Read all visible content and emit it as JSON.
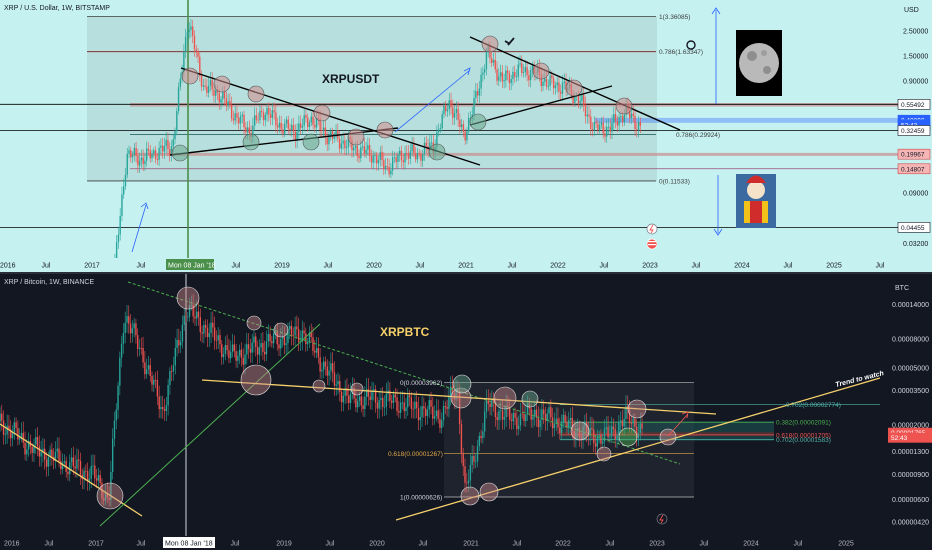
{
  "top": {
    "header": "XRP / U.S. Dollar, 1W, BITSTAMP",
    "axis_unit": "USD",
    "title": "XRPUSDT",
    "colors": {
      "background": "#c6f1f1",
      "up": "#26a69a",
      "down": "#ef5350",
      "trend": "#000000",
      "highlight": "#4a8f4a"
    },
    "date_highlight": "Mon 08 Jan '18",
    "fib_levels": [
      {
        "label": "1(3.36085)",
        "value": 3.36085
      },
      {
        "label": "0.786(1.63347)",
        "value": 1.63347
      },
      {
        "label": "0.786(0.29924)",
        "value": 0.29924
      },
      {
        "label": "0(0.11533)",
        "value": 0.11533
      }
    ],
    "price_tags": [
      {
        "label": "0.55492",
        "value": 0.55492,
        "style": "boxed"
      },
      {
        "label": "0.40090",
        "value": 0.4009,
        "style": "current"
      },
      {
        "label": "52:43",
        "value": 0.365,
        "style": "current"
      },
      {
        "label": "0.32459",
        "value": 0.32459,
        "style": "boxed"
      },
      {
        "label": "0.19967",
        "value": 0.19967,
        "style": "red"
      },
      {
        "label": "0.14807",
        "value": 0.14807,
        "style": "red"
      },
      {
        "label": "0.04455",
        "value": 0.04455,
        "style": "boxed"
      }
    ],
    "icons": {
      "moon": "moon-icon",
      "clown": "clown-icon",
      "flag": "us-flag-icon",
      "bolt": "lightning-icon",
      "eye": "eye-icon"
    }
  },
  "bottom": {
    "header": "XRP / Bitcoin, 1W, BINANCE",
    "axis_unit": "BTC",
    "title": "XRPBTC",
    "trend_label": "Trend to watch",
    "colors": {
      "background": "#131722",
      "up": "#26a69a",
      "down": "#ef5350",
      "trend_yellow": "#f6d06a",
      "trend_green": "#4caf50"
    },
    "date_highlight": "Mon 08 Jan '18",
    "fib_levels": [
      {
        "label": "0(0.00003962)",
        "value": 3.962e-05
      },
      {
        "label": "0.618(0.00001267)",
        "value": 1.267e-05
      },
      {
        "label": "1(0.00000626)",
        "value": 6.26e-06
      },
      {
        "label": "0.702(0.00002774)",
        "value": 2.774e-05
      },
      {
        "label": "0.382(0.00002091)",
        "value": 2.091e-05
      },
      {
        "label": "0.618(0.00001705)",
        "value": 1.705e-05
      },
      {
        "label": "0.702(0.00001583)",
        "value": 1.583e-05
      }
    ],
    "price_tags": [
      {
        "label": "0.00001765",
        "value": 1.765e-05,
        "style": "current"
      },
      {
        "label": "52:43",
        "value": 1.63e-05,
        "style": "current"
      }
    ]
  },
  "chart_data": [
    {
      "type": "line",
      "title": "XRPUSDT",
      "yscale": "log",
      "ylabel": "USD",
      "x_ticks": [
        "2016",
        "Jul",
        "2017",
        "Jul",
        "Mon 08 Jan '18",
        "Jul",
        "2019",
        "Jul",
        "2020",
        "Jul",
        "2021",
        "Jul",
        "2022",
        "Jul",
        "2023",
        "Jul",
        "2024",
        "Jul",
        "2025",
        "Jul"
      ],
      "y_ticks": [
        "2.50000",
        "1.50000",
        "0.90000",
        "0.55492",
        "0.40090",
        "0.32459",
        "0.19967",
        "0.14807",
        "0.09000",
        "0.04455",
        "0.03200"
      ],
      "series": [
        {
          "x": [
            "2017-03",
            "2017-05",
            "2017-07",
            "2017-09",
            "2017-11",
            "2018-01",
            "2018-03",
            "2018-05",
            "2018-07",
            "2018-09",
            "2018-11",
            "2019-01",
            "2019-03",
            "2019-05",
            "2019-07",
            "2019-09",
            "2019-11",
            "2020-01",
            "2020-03",
            "2020-05",
            "2020-07",
            "2020-09",
            "2020-11",
            "2021-01",
            "2021-02",
            "2021-04",
            "2021-06",
            "2021-08",
            "2021-10",
            "2021-12",
            "2022-02",
            "2022-04",
            "2022-06",
            "2022-08",
            "2022-10",
            "2022-12"
          ],
          "values": [
            0.01,
            0.2,
            0.18,
            0.21,
            0.24,
            3.2,
            0.8,
            0.7,
            0.45,
            0.32,
            0.5,
            0.36,
            0.32,
            0.42,
            0.3,
            0.26,
            0.22,
            0.2,
            0.15,
            0.2,
            0.2,
            0.24,
            0.6,
            0.3,
            0.45,
            1.6,
            0.9,
            1.1,
            1.1,
            0.85,
            0.8,
            0.62,
            0.34,
            0.34,
            0.48,
            0.35
          ]
        }
      ]
    },
    {
      "type": "line",
      "title": "XRPBTC",
      "yscale": "log",
      "ylabel": "BTC",
      "x_ticks": [
        "2016",
        "Jul",
        "2017",
        "Jul",
        "Mon 08 Jan '18",
        "Jul",
        "2019",
        "Jul",
        "2020",
        "Jul",
        "2021",
        "Jul",
        "2022",
        "Jul",
        "2023",
        "Jul",
        "2024",
        "Jul",
        "2025"
      ],
      "y_ticks": [
        "0.00014000",
        "0.00008000",
        "0.00005000",
        "0.00003500",
        "0.00002000",
        "0.00001765",
        "0.00001300",
        "0.00000900",
        "0.00000600",
        "0.00000420"
      ],
      "series": [
        {
          "x": [
            "2016-01",
            "2016-05",
            "2016-09",
            "2017-01",
            "2017-03",
            "2017-05",
            "2017-07",
            "2017-10",
            "2018-01",
            "2018-04",
            "2018-07",
            "2018-10",
            "2019-01",
            "2019-04",
            "2019-07",
            "2019-10",
            "2020-01",
            "2020-04",
            "2020-07",
            "2020-10",
            "2020-12",
            "2021-01",
            "2021-04",
            "2021-07",
            "2021-10",
            "2022-01",
            "2022-04",
            "2022-07",
            "2022-10",
            "2022-12"
          ],
          "values": [
            2.1e-05,
            1.4e-05,
            1.1e-05,
            9e-06,
            6e-06,
            0.00012,
            7e-05,
            2.5e-05,
            0.00013,
            9e-05,
            6e-05,
            7e-05,
            8e-05,
            9e-05,
            5e-05,
            3e-05,
            3.1e-05,
            2.9e-05,
            2.6e-05,
            2.3e-05,
            3.8e-05,
            6.8e-06,
            2.8e-05,
            2.2e-05,
            2.4e-05,
            2.1e-05,
            1.8e-05,
            1.6e-05,
            2.3e-05,
            1.75e-05
          ]
        }
      ]
    }
  ]
}
